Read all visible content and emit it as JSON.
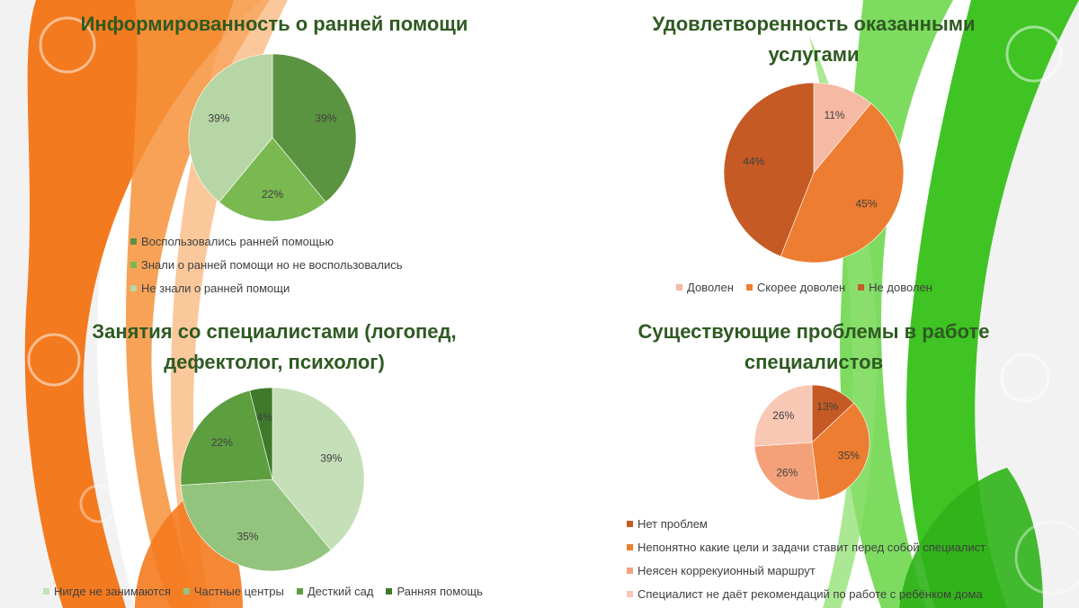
{
  "chart_data": [
    {
      "type": "pie",
      "title": "Информированность о ранней помощи",
      "categories": [
        "Воспользовались ранней помощью",
        "Знали о ранней помощи но не воспользовались",
        "Не знали о ранней помощи"
      ],
      "values": [
        39,
        22,
        39
      ],
      "labels": [
        "39%",
        "22%",
        "39%"
      ],
      "colors": [
        "#5b9440",
        "#7ab850",
        "#b7d6a5"
      ],
      "legend_position": "bottom-left"
    },
    {
      "type": "pie",
      "title": "Удовлетворенность оказанными услугами",
      "categories": [
        "Доволен",
        "Скорее доволен",
        "Не доволен"
      ],
      "values": [
        11,
        45,
        44
      ],
      "labels": [
        "11%",
        "45%",
        "44%"
      ],
      "colors": [
        "#f6b9a4",
        "#ed7d31",
        "#c55a24"
      ],
      "legend_position": "bottom"
    },
    {
      "type": "pie",
      "title": "Занятия со специалистами (логопед, дефектолог, психолог)",
      "categories": [
        "Нигде не занимаются",
        "Частные центры",
        "Десткий сад",
        "Ранняя помощь"
      ],
      "values": [
        39,
        35,
        22,
        4
      ],
      "labels": [
        "39%",
        "35%",
        "22%",
        "4%"
      ],
      "colors": [
        "#c5dfb8",
        "#93c47d",
        "#5d9e3f",
        "#3e7a2a"
      ],
      "legend_position": "bottom"
    },
    {
      "type": "pie",
      "title": "Существующие проблемы в работе специалистов",
      "categories": [
        "Нет проблем",
        "Непонятно какие цели и задачи ставит перед собой специалист",
        "Неясен коррекуионный маршрут",
        "Специалист не даёт рекомендаций по работе с ребёнком дома"
      ],
      "values": [
        13,
        35,
        26,
        26
      ],
      "labels": [
        "13%",
        "35%",
        "26%",
        "26%"
      ],
      "colors": [
        "#c55a24",
        "#ed7d31",
        "#f4a17a",
        "#f8c8b5"
      ],
      "legend_position": "bottom-left"
    }
  ]
}
